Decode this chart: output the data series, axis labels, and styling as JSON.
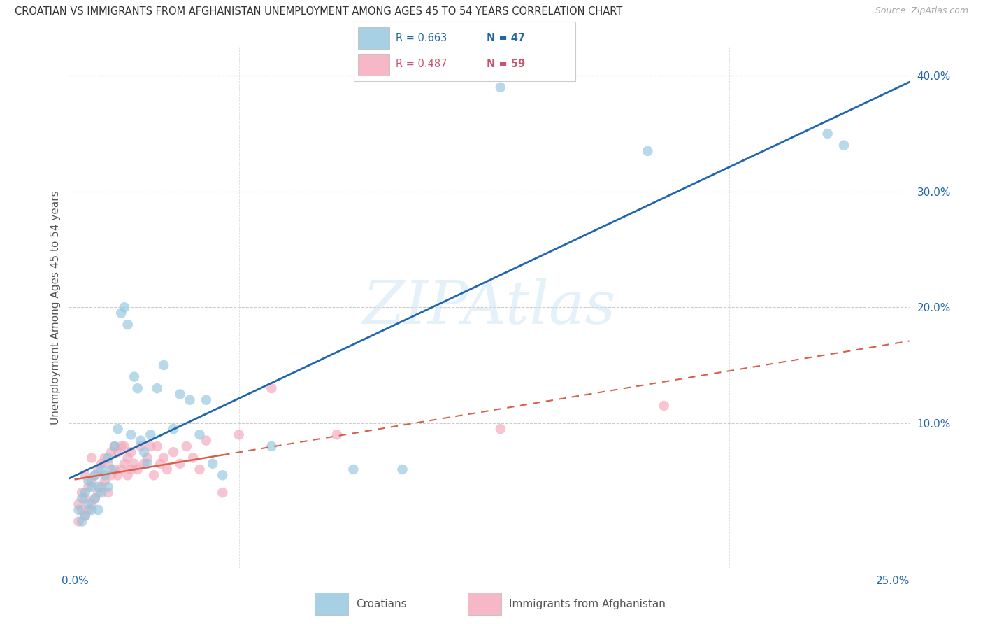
{
  "title": "CROATIAN VS IMMIGRANTS FROM AFGHANISTAN UNEMPLOYMENT AMONG AGES 45 TO 54 YEARS CORRELATION CHART",
  "source": "Source: ZipAtlas.com",
  "ylabel": "Unemployment Among Ages 45 to 54 years",
  "xlim": [
    -0.002,
    0.255
  ],
  "ylim": [
    -0.025,
    0.425
  ],
  "blue_color": "#92c5de",
  "pink_color": "#f4a7b9",
  "blue_line_color": "#2166ac",
  "pink_line_color": "#d6604d",
  "legend_blue_R": "R = 0.663",
  "legend_blue_N": "N = 47",
  "legend_pink_R": "R = 0.487",
  "legend_pink_N": "N = 59",
  "watermark": "ZIPAtlas",
  "blue_scatter_x": [
    0.001,
    0.002,
    0.002,
    0.003,
    0.003,
    0.004,
    0.004,
    0.005,
    0.005,
    0.006,
    0.006,
    0.007,
    0.007,
    0.008,
    0.008,
    0.009,
    0.01,
    0.01,
    0.011,
    0.012,
    0.013,
    0.014,
    0.015,
    0.016,
    0.017,
    0.018,
    0.019,
    0.02,
    0.021,
    0.022,
    0.023,
    0.025,
    0.027,
    0.03,
    0.032,
    0.035,
    0.038,
    0.04,
    0.042,
    0.045,
    0.06,
    0.085,
    0.1,
    0.13,
    0.175,
    0.23,
    0.235
  ],
  "blue_scatter_y": [
    0.025,
    0.015,
    0.035,
    0.02,
    0.04,
    0.03,
    0.05,
    0.025,
    0.045,
    0.035,
    0.055,
    0.025,
    0.045,
    0.04,
    0.06,
    0.055,
    0.045,
    0.07,
    0.06,
    0.08,
    0.095,
    0.195,
    0.2,
    0.185,
    0.09,
    0.14,
    0.13,
    0.085,
    0.075,
    0.065,
    0.09,
    0.13,
    0.15,
    0.095,
    0.125,
    0.12,
    0.09,
    0.12,
    0.065,
    0.055,
    0.08,
    0.06,
    0.06,
    0.39,
    0.335,
    0.35,
    0.34
  ],
  "pink_scatter_x": [
    0.001,
    0.001,
    0.002,
    0.002,
    0.003,
    0.003,
    0.003,
    0.004,
    0.004,
    0.005,
    0.005,
    0.005,
    0.006,
    0.006,
    0.007,
    0.007,
    0.008,
    0.008,
    0.009,
    0.009,
    0.01,
    0.01,
    0.011,
    0.011,
    0.012,
    0.012,
    0.013,
    0.013,
    0.014,
    0.014,
    0.015,
    0.015,
    0.016,
    0.016,
    0.017,
    0.017,
    0.018,
    0.019,
    0.02,
    0.021,
    0.022,
    0.023,
    0.024,
    0.025,
    0.026,
    0.027,
    0.028,
    0.03,
    0.032,
    0.034,
    0.036,
    0.038,
    0.04,
    0.045,
    0.05,
    0.06,
    0.08,
    0.13,
    0.18
  ],
  "pink_scatter_y": [
    0.03,
    0.015,
    0.025,
    0.04,
    0.02,
    0.035,
    0.055,
    0.025,
    0.045,
    0.03,
    0.05,
    0.07,
    0.035,
    0.055,
    0.04,
    0.06,
    0.045,
    0.065,
    0.05,
    0.07,
    0.04,
    0.065,
    0.055,
    0.075,
    0.06,
    0.08,
    0.055,
    0.075,
    0.06,
    0.08,
    0.065,
    0.08,
    0.055,
    0.07,
    0.06,
    0.075,
    0.065,
    0.06,
    0.08,
    0.065,
    0.07,
    0.08,
    0.055,
    0.08,
    0.065,
    0.07,
    0.06,
    0.075,
    0.065,
    0.08,
    0.07,
    0.06,
    0.085,
    0.04,
    0.09,
    0.13,
    0.09,
    0.095,
    0.115
  ],
  "blue_intercept": 0.005,
  "blue_slope": 1.48,
  "pink_intercept": 0.03,
  "pink_slope": 0.7
}
